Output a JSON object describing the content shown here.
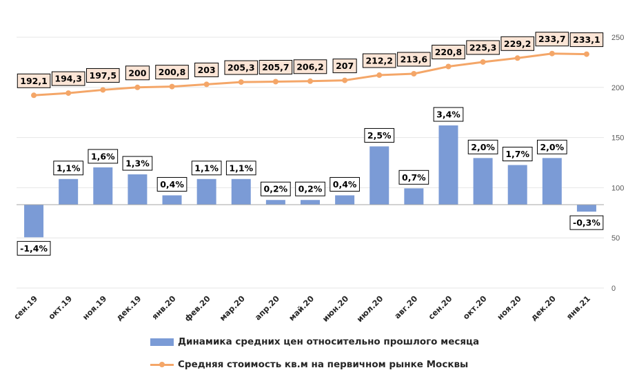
{
  "chart_data": {
    "type": "bar+line",
    "categories": [
      "сен.19",
      "окт.19",
      "ноя.19",
      "дек.19",
      "янв.20",
      "фев.20",
      "мар.20",
      "апр.20",
      "май.20",
      "июн.20",
      "июл.20",
      "авг.20",
      "сен.20",
      "окт.20",
      "ноя.20",
      "дек.20",
      "янв.21"
    ],
    "series": [
      {
        "name": "Динамика средних цен относительно прошлого месяца",
        "type": "bar",
        "values": [
          -1.4,
          1.1,
          1.6,
          1.3,
          0.4,
          1.1,
          1.1,
          0.2,
          0.2,
          0.4,
          2.5,
          0.7,
          3.4,
          2.0,
          1.7,
          2.0,
          -0.3
        ],
        "labels": [
          "-1,4%",
          "1,1%",
          "1,6%",
          "1,3%",
          "0,4%",
          "1,1%",
          "1,1%",
          "0,2%",
          "0,2%",
          "0,4%",
          "2,5%",
          "0,7%",
          "3,4%",
          "2,0%",
          "1,7%",
          "2,0%",
          "-0,3%"
        ],
        "color": "#7b9bd6"
      },
      {
        "name": "Средняя стоимость кв.м на первичном рынке Москвы",
        "type": "line",
        "axis": "right",
        "values": [
          192.1,
          194.3,
          197.5,
          200,
          200.8,
          203,
          205.3,
          205.7,
          206.2,
          207,
          212.2,
          213.6,
          220.8,
          225.3,
          229.2,
          233.7,
          233.1
        ],
        "labels": [
          "192,1",
          "194,3",
          "197,5",
          "200",
          "200,8",
          "203",
          "205,3",
          "205,7",
          "206,2",
          "207",
          "212,2",
          "213,6",
          "220,8",
          "225,3",
          "229,2",
          "233,7",
          "233,1"
        ],
        "color": "#f4a668",
        "label_fill": "#fbe5d6"
      }
    ],
    "y_right": {
      "ticks": [
        0,
        50,
        100,
        150,
        200,
        250
      ],
      "tick_labels": [
        "0",
        "50",
        "100",
        "150",
        "200",
        "250"
      ],
      "range": [
        0,
        250
      ]
    },
    "y_left_range": [
      -2.0,
      4.0
    ],
    "grid": true,
    "legend_position": "bottom"
  }
}
